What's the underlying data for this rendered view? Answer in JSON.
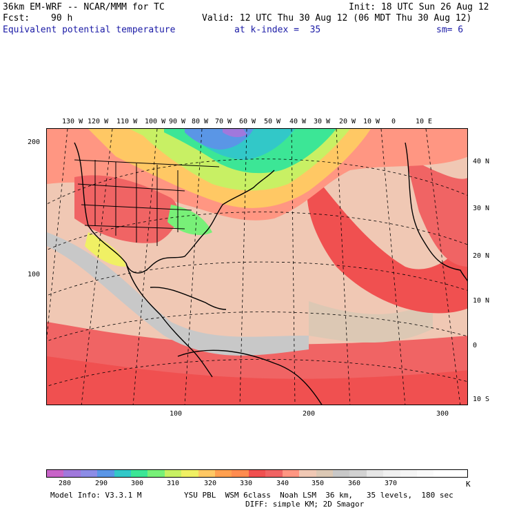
{
  "header": {
    "model": "36km EM-WRF -- NCAR/MMM for TC",
    "init": "Init: 18 UTC Sun 26 Aug 12",
    "fcst_label": "Fcst:",
    "fcst_value": "90 h",
    "valid": "Valid: 12 UTC Thu 30 Aug 12 (06 MDT Thu 30 Aug 12)",
    "field_name": "Equivalent potential temperature",
    "level": "at k-index =  35",
    "smoothing": "sm= 6"
  },
  "map": {
    "lon_labels": [
      "130 W",
      "120 W",
      "110 W",
      "100 W",
      "90 W",
      "80 W",
      "70 W",
      "60 W",
      "50 W",
      "40 W",
      "30 W",
      "20 W",
      "10 W",
      "0",
      "10 E"
    ],
    "lat_labels": [
      "40 N",
      "30 N",
      "20 N",
      "10 N",
      "0",
      "10 S"
    ],
    "grid_x_labels": [
      "100",
      "200",
      "300"
    ],
    "grid_y_labels": [
      "200",
      "100"
    ]
  },
  "colorbar": {
    "colors": [
      "#c864c8",
      "#a078dc",
      "#8c8ce6",
      "#5a96e6",
      "#32c8c8",
      "#3ce696",
      "#78f078",
      "#c8f064",
      "#f0f064",
      "#ffc864",
      "#ffa050",
      "#ff8c50",
      "#f05050",
      "#f06464",
      "#ff9682",
      "#f0c8b4",
      "#dcc8b4",
      "#c8c8c8",
      "#d2d2d2",
      "#e6e6e6",
      "#f0f0f0",
      "#f5f5f5",
      "#fafafa",
      "#ffffff",
      "#ffffff"
    ],
    "tick_labels": [
      "280",
      "290",
      "300",
      "310",
      "320",
      "330",
      "340",
      "350",
      "360",
      "370"
    ],
    "unit": "K"
  },
  "footer": {
    "model_info": "Model Info: V3.3.1 M",
    "physics": "YSU PBL  WSM 6class  Noah LSM  36 km,   35 levels,  180 sec",
    "diffusion": "DIFF: simple KM; 2D Smagor"
  }
}
